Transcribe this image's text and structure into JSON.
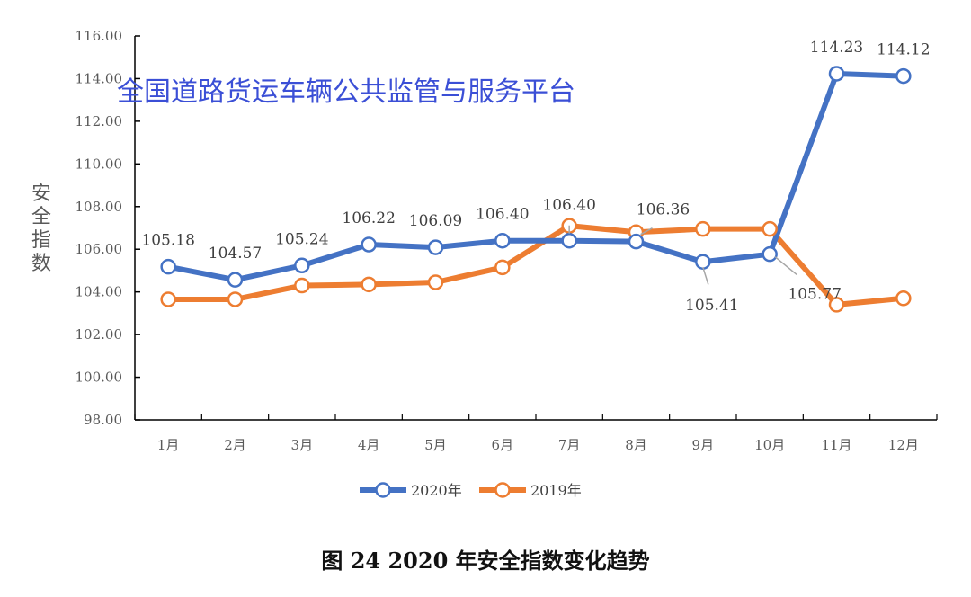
{
  "chart_data": {
    "type": "line",
    "title": "",
    "caption": "图 24  2020 年安全指数变化趋势",
    "watermark": "全国道路货运车辆公共监管与服务平台",
    "xlabel": "",
    "ylabel": "安全指数",
    "ylim": [
      98,
      116
    ],
    "yticks": [
      "98.00",
      "100.00",
      "102.00",
      "104.00",
      "106.00",
      "108.00",
      "110.00",
      "112.00",
      "114.00",
      "116.00"
    ],
    "categories": [
      "1月",
      "2月",
      "3月",
      "4月",
      "5月",
      "6月",
      "7月",
      "8月",
      "9月",
      "10月",
      "11月",
      "12月"
    ],
    "grid": false,
    "legend_position": "bottom",
    "series": [
      {
        "name": "2020年",
        "color": "#4472c4",
        "marker": "open-circle",
        "values": [
          105.18,
          104.57,
          105.24,
          106.22,
          106.09,
          106.4,
          106.4,
          106.36,
          105.41,
          105.77,
          114.23,
          114.12
        ],
        "labels": [
          "105.18",
          "104.57",
          "105.24",
          "106.22",
          "106.09",
          "106.40",
          "106.40",
          "106.36",
          "105.41",
          "105.77",
          "114.23",
          "114.12"
        ]
      },
      {
        "name": "2019年",
        "color": "#ed7d31",
        "marker": "open-circle",
        "values": [
          103.65,
          103.65,
          104.3,
          104.35,
          104.45,
          105.15,
          107.1,
          106.8,
          106.95,
          106.95,
          103.4,
          103.7
        ]
      }
    ]
  }
}
